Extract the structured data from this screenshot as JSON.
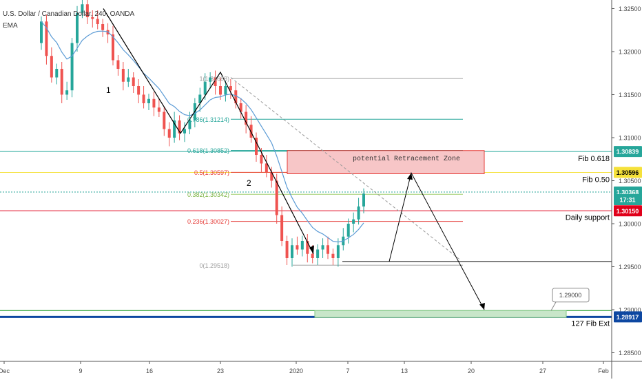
{
  "header": {
    "symbol": "U.S. Dollar / Canadian Dollar, 240, OANDA",
    "indicator": "EMA"
  },
  "colors": {
    "bull": "#26a69a",
    "bear": "#ef5350",
    "ema": "#5b9bd5",
    "fib_green": "#4caf50",
    "fib_blue": "#26a69a",
    "fib_red": "#e53935",
    "fib_yellow": "#f5e13a",
    "fib_lime": "#9ccc65",
    "fib_gray": "#9e9e9e",
    "navy": "#0d47a1",
    "daily_red": "#e0001a",
    "zone_fill": "#f7c6c7",
    "zone_border": "#e53935",
    "target_fill": "#c8e6c9"
  },
  "chart_data": {
    "type": "candlestick",
    "ylim": [
      1.284,
      1.326
    ],
    "x_tick_labels": [
      "Dec",
      "9",
      "16",
      "23",
      "2020",
      "7",
      "13",
      "20",
      "27",
      "Feb"
    ],
    "y_tick_labels": [
      "1.32500",
      "1.32000",
      "1.31500",
      "1.31000",
      "1.30500",
      "1.30000",
      "1.29500",
      "1.29000",
      "1.28500"
    ],
    "price_badges": [
      {
        "text": "1.30839",
        "value": 1.30839,
        "color": "#26a69a"
      },
      {
        "text": "1.30596",
        "value": 1.30596,
        "color": "#f5e13a",
        "dark": true
      },
      {
        "text": "1.30368",
        "value": 1.30368,
        "color": "#26a69a"
      },
      {
        "text": "17:31",
        "value": 1.3028,
        "color": "#26a69a"
      },
      {
        "text": "1.30150",
        "value": 1.3015,
        "color": "#e0001a"
      },
      {
        "text": "1.28917",
        "value": 1.28917,
        "color": "#0d47a1"
      }
    ],
    "fib_levels": [
      {
        "label": "1(1.31688)",
        "value": 1.31688,
        "color": "#9e9e9e"
      },
      {
        "label": "0.786(1.31214)",
        "value": 1.31214,
        "color": "#26a69a"
      },
      {
        "label": "0.618(1.30852)",
        "value": 1.30852,
        "color": "#26a69a"
      },
      {
        "label": "0.5(1.30597)",
        "value": 1.30597,
        "color": "#e53935"
      },
      {
        "label": "0.382(1.30342)",
        "value": 1.30342,
        "color": "#9ccc65"
      },
      {
        "label": "0.236(1.30027)",
        "value": 1.30027,
        "color": "#e53935"
      },
      {
        "label": "0(1.29518)",
        "value": 1.29518,
        "color": "#9e9e9e"
      }
    ],
    "horizontal_lines": [
      {
        "name": "Fib 0.618",
        "value": 1.30839,
        "color": "#26a69a"
      },
      {
        "name": "Fib 0.50",
        "value": 1.30596,
        "color": "#f5e13a"
      },
      {
        "name": "",
        "value": 1.30368,
        "color": "#26a69a"
      },
      {
        "name": "Daily support",
        "value": 1.3015,
        "color": "#e0001a"
      },
      {
        "name": "",
        "value": 1.2956,
        "color": "#000000"
      },
      {
        "name": "",
        "value": 1.2899,
        "color": "#4caf50"
      },
      {
        "name": "127 Fib Ext",
        "value": 1.28917,
        "color": "#0d47a1"
      }
    ],
    "annotations": {
      "retracement_zone": "potential Retracement Zone",
      "wave1": "1",
      "wave2": "2",
      "target_callout": "1.29000",
      "fib_0618": "Fib 0.618",
      "fib_050": "Fib 0.50",
      "daily_support": "Daily support",
      "fib_ext": "127 Fib Ext"
    },
    "closes": [
      1.3235,
      1.3195,
      1.317,
      1.318,
      1.315,
      1.3155,
      1.321,
      1.3245,
      1.3255,
      1.324,
      1.3238,
      1.3232,
      1.3225,
      1.322,
      1.319,
      1.318,
      1.3165,
      1.317,
      1.316,
      1.315,
      1.314,
      1.3145,
      1.3135,
      1.313,
      1.311,
      1.31,
      1.312,
      1.3105,
      1.311,
      1.312,
      1.314,
      1.315,
      1.3165,
      1.317,
      1.316,
      1.315,
      1.316,
      1.3155,
      1.314,
      1.313,
      1.3115,
      1.31,
      1.308,
      1.307,
      1.306,
      1.305,
      1.301,
      1.298,
      1.296,
      1.2975,
      1.297,
      1.298,
      1.2965,
      1.296,
      1.297,
      1.2975,
      1.2965,
      1.296,
      1.2975,
      1.2985,
      1.3,
      1.3005,
      1.302,
      1.3035
    ]
  }
}
